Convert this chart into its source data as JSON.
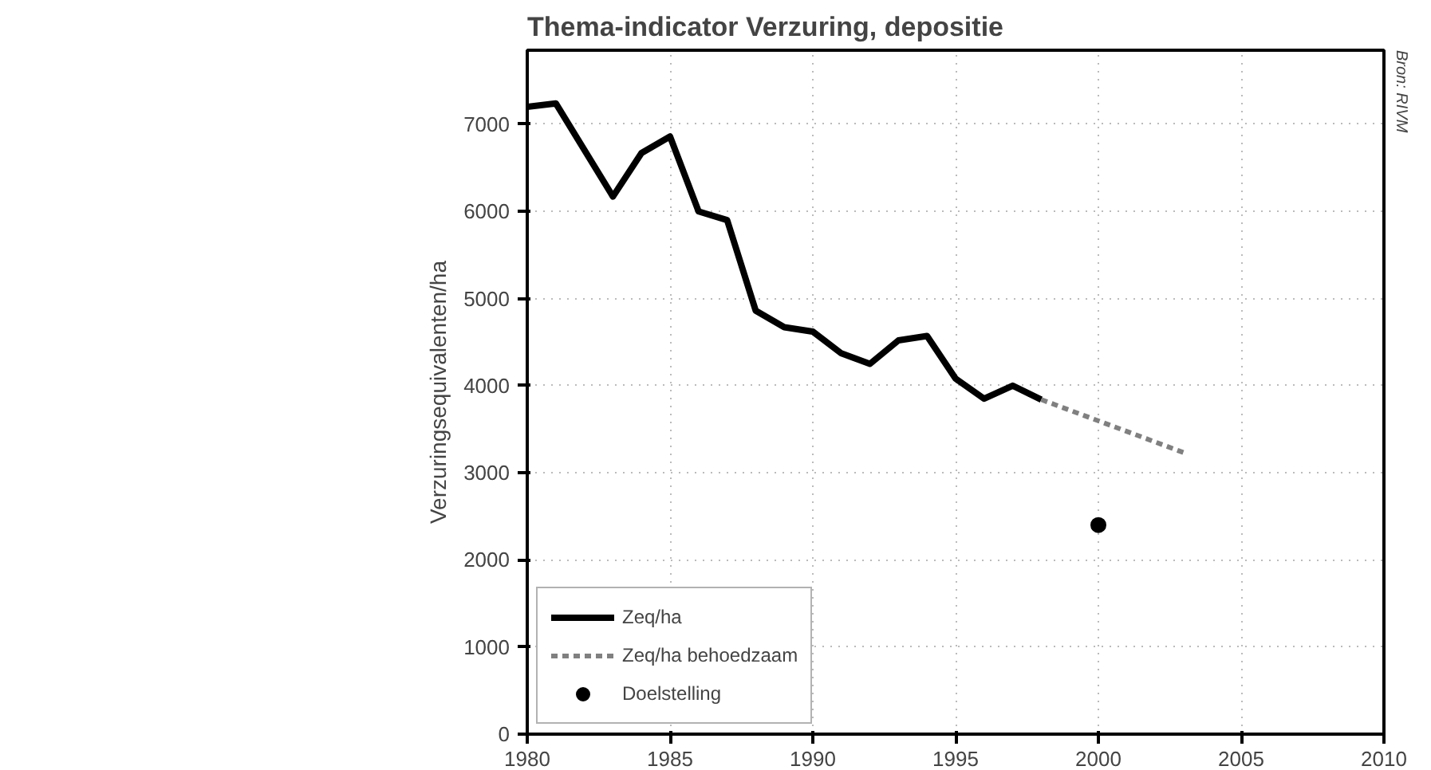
{
  "chart_data": {
    "type": "line",
    "title": "Thema-indicator Verzuring, depositie",
    "ylabel": "Verzuringsequivalenten/ha",
    "annotations": [
      "Bron: RIVM"
    ],
    "xlim": [
      1980,
      2010
    ],
    "xticks": [
      1980,
      1985,
      1990,
      1995,
      2000,
      2005,
      2010
    ],
    "ylim": [
      0,
      7850
    ],
    "yticks": [
      0,
      1000,
      2000,
      3000,
      4000,
      5000,
      6000,
      7000
    ],
    "grid": true,
    "legend": "bottom left",
    "series": [
      {
        "name": "Zeq/ha",
        "color": "#000000",
        "line_style": "solid",
        "x": [
          1980,
          1981,
          1983,
          1984,
          1985,
          1986,
          1987,
          1988,
          1989,
          1990,
          1991,
          1992,
          1993,
          1994,
          1995,
          1996,
          1997,
          1998
        ],
        "values": [
          7200,
          7240,
          6170,
          6670,
          6860,
          6000,
          5900,
          4860,
          4670,
          4620,
          4370,
          4250,
          4520,
          4570,
          4080,
          3850,
          4000,
          3840
        ]
      },
      {
        "name": "Zeq/ha behoedzaam",
        "color": "#808080",
        "line_style": "dashed",
        "x": [
          1998,
          2003
        ],
        "values": [
          3840,
          3230
        ]
      },
      {
        "name": "Doelstelling",
        "type": "scatter",
        "marker": "circle",
        "color": "#000000",
        "x": [
          2000
        ],
        "values": [
          2400
        ]
      }
    ]
  }
}
